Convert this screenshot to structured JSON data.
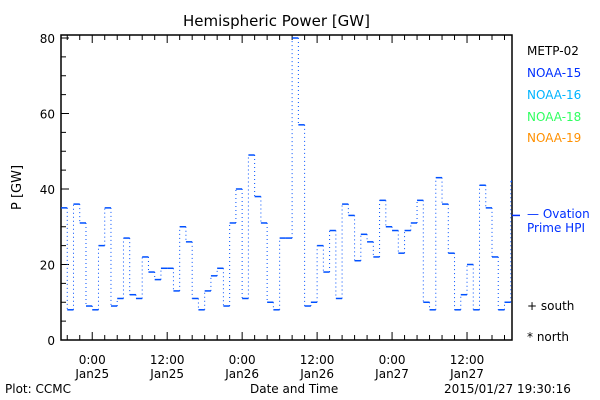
{
  "chart_data": {
    "type": "line",
    "title": "Hemispheric Power [GW]",
    "xlabel": "Date and Time",
    "ylabel": "P [GW]",
    "ylim": [
      0,
      80
    ],
    "y_ticks": [
      0,
      20,
      40,
      60,
      80
    ],
    "x_unit": "hours since 2015-01-25 00:00",
    "xlim": [
      -5,
      67.2
    ],
    "x_ticks": [
      {
        "hour": 0,
        "time": "0:00",
        "date": "Jan25"
      },
      {
        "hour": 12,
        "time": "12:00",
        "date": "Jan25"
      },
      {
        "hour": 24,
        "time": "0:00",
        "date": "Jan26"
      },
      {
        "hour": 36,
        "time": "12:00",
        "date": "Jan26"
      },
      {
        "hour": 48,
        "time": "0:00",
        "date": "Jan27"
      },
      {
        "hour": 60,
        "time": "12:00",
        "date": "Jan27"
      }
    ],
    "series": [
      {
        "name": "NOAA-15",
        "color": "#0050ff",
        "style": "step",
        "x_start": -5,
        "step_hours": 1,
        "values": [
          35,
          8,
          36,
          31,
          9,
          8,
          25,
          35,
          9,
          11,
          27,
          12,
          11,
          22,
          18,
          16,
          19,
          19,
          13,
          30,
          26,
          11,
          8,
          13,
          17,
          19,
          9,
          31,
          40,
          11,
          49,
          38,
          31,
          10,
          8,
          27,
          27,
          80,
          57,
          9,
          10,
          25,
          18,
          29,
          11,
          36,
          33,
          21,
          28,
          26,
          22,
          37,
          30,
          29,
          23,
          29,
          31,
          37,
          10,
          8,
          43,
          36,
          23,
          8,
          12,
          20,
          8,
          41,
          35,
          22,
          8,
          10,
          42
        ]
      }
    ],
    "ovation_value": 33,
    "legend": [
      {
        "label": "METP-02",
        "color": "#000000"
      },
      {
        "label": "NOAA-15",
        "color": "#0030ff"
      },
      {
        "label": "NOAA-16",
        "color": "#00b4ff"
      },
      {
        "label": "NOAA-18",
        "color": "#30ff60"
      },
      {
        "label": "NOAA-19",
        "color": "#ff9000"
      }
    ],
    "ovation_label_1": "— Ovation",
    "ovation_label_2": "Prime HPI",
    "south_label": "+ south",
    "north_label": "* north",
    "footer_left": "Plot: CCMC",
    "footer_right": "2015/01/27 19:30:16"
  }
}
